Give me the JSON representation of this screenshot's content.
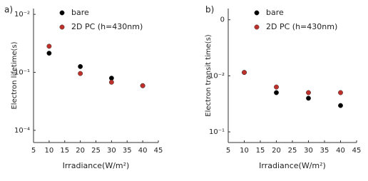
{
  "chart_data": [
    {
      "type": "scatter",
      "panel_label": "a)",
      "ylabel": "Electron lifetime(s)",
      "xlabel": "Irradiance(W/m²)",
      "xlim": [
        5,
        45
      ],
      "xticks": [
        5,
        10,
        15,
        20,
        25,
        30,
        35,
        40,
        45
      ],
      "ylim": [
        -0.21,
        2.1
      ],
      "yticks": [
        {
          "value": 2,
          "label": "10⁻²"
        },
        {
          "value": 1,
          "label": "10⁻¹"
        },
        {
          "value": 0,
          "label": "10⁻⁴"
        }
      ],
      "legend": "upper right",
      "grid": false,
      "series": [
        {
          "name": "bare",
          "color": "#000000",
          "x": [
            10,
            20,
            30,
            40
          ],
          "values": [
            1.33,
            1.1,
            0.9,
            0.77
          ]
        },
        {
          "name": "2D PC (h=430nm)",
          "color": "#c0302a",
          "x": [
            10,
            20,
            30,
            40
          ],
          "values": [
            1.45,
            0.98,
            0.83,
            0.77
          ]
        }
      ]
    },
    {
      "type": "scatter",
      "panel_label": "b)",
      "ylabel": "Electron transit time(s)",
      "xlabel": "Irradiance(W/m²)",
      "xlim": [
        5,
        45
      ],
      "xticks": [
        5,
        10,
        15,
        20,
        25,
        30,
        35,
        40,
        45
      ],
      "ylim": [
        -0.19,
        2.2
      ],
      "yticks": [
        {
          "value": 2,
          "label": "0"
        },
        {
          "value": 1,
          "label": "10⁻²"
        },
        {
          "value": 0,
          "label": "10⁻¹"
        }
      ],
      "legend": "upper right",
      "grid": false,
      "series": [
        {
          "name": "bare",
          "color": "#000000",
          "x": [
            10,
            20,
            30,
            40
          ],
          "values": [
            1.06,
            0.7,
            0.6,
            0.47
          ]
        },
        {
          "name": "2D PC (h=430nm)",
          "color": "#c0302a",
          "x": [
            10,
            20,
            30,
            40
          ],
          "values": [
            1.06,
            0.8,
            0.7,
            0.7
          ]
        }
      ]
    }
  ]
}
